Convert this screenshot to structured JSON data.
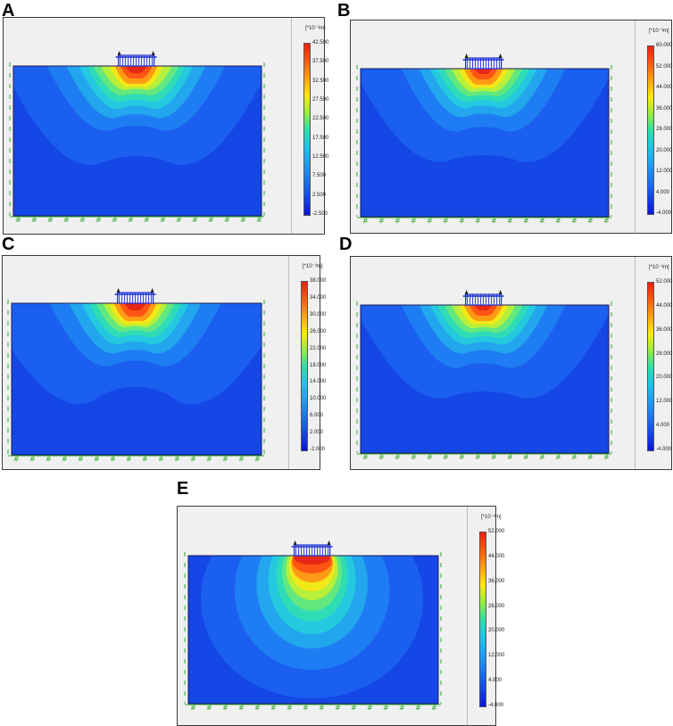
{
  "unit_label": "[*10⁻³m]",
  "panels": [
    {
      "letter": "A",
      "variant": 0,
      "labels": [
        "42.500",
        "37.500",
        "32.500",
        "27.500",
        "22.500",
        "17.500",
        "12.500",
        "7.500",
        "2.500",
        "-2.500"
      ]
    },
    {
      "letter": "B",
      "variant": 1,
      "labels": [
        "60.000",
        "52.000",
        "44.000",
        "36.000",
        "28.000",
        "20.000",
        "12.000",
        "4.000",
        "-4.000"
      ]
    },
    {
      "letter": "C",
      "variant": 2,
      "labels": [
        "38.000",
        "34.000",
        "30.000",
        "26.000",
        "22.000",
        "18.000",
        "14.000",
        "10.000",
        "6.000",
        "2.000",
        "-2.000"
      ]
    },
    {
      "letter": "D",
      "variant": 1,
      "labels": [
        "52.000",
        "44.000",
        "36.000",
        "28.000",
        "20.000",
        "12.000",
        "4.000",
        "-4.000"
      ]
    },
    {
      "letter": "E",
      "variant": 3,
      "labels": [
        "52.000",
        "44.000",
        "36.000",
        "28.000",
        "20.000",
        "12.000",
        "4.000",
        "-4.000"
      ]
    }
  ],
  "colors": {
    "background_blue": "#1546e6",
    "contour": [
      "#1546e6",
      "#1a5ff0",
      "#1e7df2",
      "#22a6ee",
      "#24c9df",
      "#2fdcb6",
      "#63e87f",
      "#b6ef3c",
      "#f2e818",
      "#ff9a14",
      "#ff5514",
      "#e62814"
    ],
    "legend": [
      "#ee2010",
      "#ff5a10",
      "#ffa010",
      "#ffe810",
      "#9bee3a",
      "#2fe0a6",
      "#1fc6e6",
      "#1f9ff2",
      "#1c74f0",
      "#1446e6",
      "#0c14d8"
    ],
    "boundary_green": "#33aa33",
    "structure_blue": "#1a30d0"
  }
}
